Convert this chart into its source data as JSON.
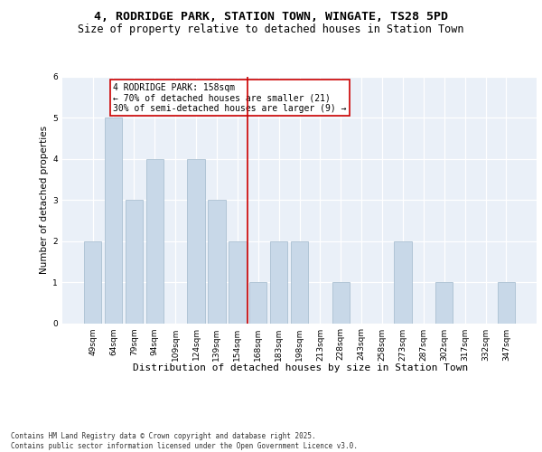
{
  "title": "4, RODRIDGE PARK, STATION TOWN, WINGATE, TS28 5PD",
  "subtitle": "Size of property relative to detached houses in Station Town",
  "xlabel": "Distribution of detached houses by size in Station Town",
  "ylabel": "Number of detached properties",
  "categories": [
    "49sqm",
    "64sqm",
    "79sqm",
    "94sqm",
    "109sqm",
    "124sqm",
    "139sqm",
    "154sqm",
    "168sqm",
    "183sqm",
    "198sqm",
    "213sqm",
    "228sqm",
    "243sqm",
    "258sqm",
    "273sqm",
    "287sqm",
    "302sqm",
    "317sqm",
    "332sqm",
    "347sqm"
  ],
  "values": [
    2,
    5,
    3,
    4,
    0,
    4,
    3,
    2,
    1,
    2,
    2,
    0,
    1,
    0,
    0,
    2,
    0,
    1,
    0,
    0,
    1
  ],
  "bar_color": "#c8d8e8",
  "bar_edgecolor": "#a0b8cc",
  "vline_x_index": 7,
  "vline_color": "#cc0000",
  "annotation_text": "4 RODRIDGE PARK: 158sqm\n← 70% of detached houses are smaller (21)\n30% of semi-detached houses are larger (9) →",
  "annotation_box_color": "#ffffff",
  "annotation_box_edgecolor": "#cc0000",
  "ylim": [
    0,
    6
  ],
  "yticks": [
    0,
    1,
    2,
    3,
    4,
    5,
    6
  ],
  "bg_color": "#eaf0f8",
  "footer": "Contains HM Land Registry data © Crown copyright and database right 2025.\nContains public sector information licensed under the Open Government Licence v3.0.",
  "title_fontsize": 9.5,
  "subtitle_fontsize": 8.5,
  "xlabel_fontsize": 8,
  "ylabel_fontsize": 7.5,
  "tick_fontsize": 6.5,
  "annotation_fontsize": 7,
  "footer_fontsize": 5.5
}
